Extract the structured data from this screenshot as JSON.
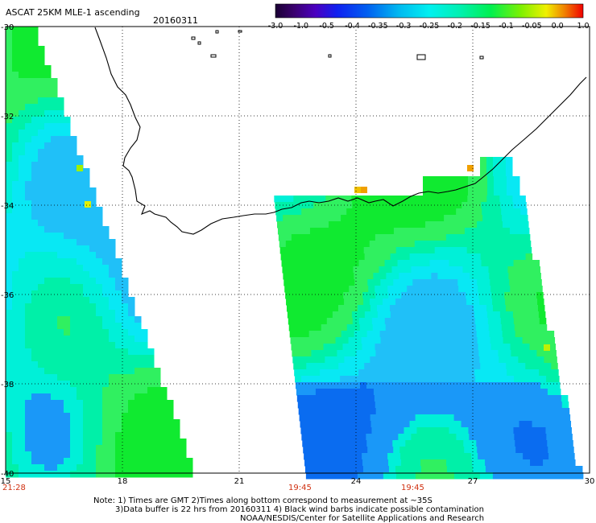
{
  "header": {
    "product": "ASCAT 25KM MLE-1 ascending",
    "date": "20160311"
  },
  "colorbar": {
    "labels": [
      "-3.0",
      "-1.0",
      "-0.5",
      "-0.4",
      "-0.35",
      "-0.3",
      "-0.25",
      "-0.2",
      "-0.15",
      "-0.1",
      "-0.05",
      "0.0",
      "1.0"
    ],
    "colors": [
      "#1a0033",
      "#3a0078",
      "#4b00c8",
      "#0a1ef0",
      "#0a7cf0",
      "#00c8f0",
      "#00f0e0",
      "#00f0a0",
      "#10f040",
      "#70f000",
      "#f0e800",
      "#f07800",
      "#f01000"
    ]
  },
  "axes": {
    "lat_labels": [
      "-30",
      "-32",
      "-34",
      "-36",
      "-38",
      "-40"
    ],
    "lon_labels": [
      "15",
      "18",
      "21",
      "24",
      "27",
      "30"
    ]
  },
  "swath_times": [
    {
      "time": "21:28",
      "lon": "15"
    },
    {
      "time": "19:45",
      "lon": "22.5"
    },
    {
      "time": "19:45",
      "lon": "25.5"
    }
  ],
  "notes": {
    "line1": "Note: 1) Times are GMT 2)Times along bottom correspond to measurement at ~35S",
    "line2": "3)Data buffer is 22 hrs from 20160311 4) Black wind barbs indicate possible contamination",
    "line3": "NOAA/NESDIS/Center for Satellite Applications and Research"
  },
  "style": {
    "time_color": "#d03010",
    "grid_color": "#000000"
  }
}
